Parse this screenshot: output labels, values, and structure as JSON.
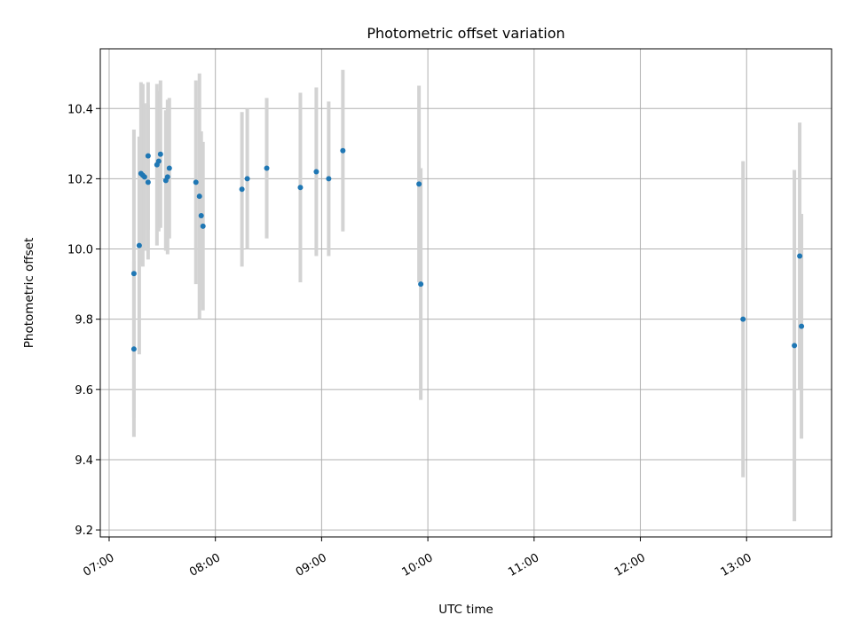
{
  "chart_data": {
    "type": "scatter",
    "title": "Photometric offset variation",
    "xlabel": "UTC time",
    "ylabel": "Photometric offset",
    "xlim": [
      "06:55",
      "13:48"
    ],
    "ylim": [
      9.18,
      10.57
    ],
    "xticks": [
      "07:00",
      "08:00",
      "09:00",
      "10:00",
      "11:00",
      "12:00",
      "13:00"
    ],
    "yticks": [
      9.2,
      9.4,
      9.6,
      9.8,
      10.0,
      10.2,
      10.4
    ],
    "grid": true,
    "colors": {
      "points": "#1f77b4",
      "error_bars": "#d3d3d3"
    },
    "points": [
      {
        "time": "07:14",
        "offset": 9.715,
        "err": 0.25
      },
      {
        "time": "07:14",
        "offset": 9.93,
        "err": 0.41
      },
      {
        "time": "07:17",
        "offset": 10.01,
        "err": 0.31
      },
      {
        "time": "07:18",
        "offset": 10.215,
        "err": 0.26
      },
      {
        "time": "07:19",
        "offset": 10.21,
        "err": 0.26
      },
      {
        "time": "07:20",
        "offset": 10.205,
        "err": 0.21
      },
      {
        "time": "07:22",
        "offset": 10.19,
        "err": 0.22
      },
      {
        "time": "07:22",
        "offset": 10.265,
        "err": 0.21
      },
      {
        "time": "07:27",
        "offset": 10.24,
        "err": 0.23
      },
      {
        "time": "07:28",
        "offset": 10.25,
        "err": 0.2
      },
      {
        "time": "07:29",
        "offset": 10.27,
        "err": 0.21
      },
      {
        "time": "07:32",
        "offset": 10.195,
        "err": 0.2
      },
      {
        "time": "07:33",
        "offset": 10.205,
        "err": 0.22
      },
      {
        "time": "07:34",
        "offset": 10.23,
        "err": 0.2
      },
      {
        "time": "07:49",
        "offset": 10.19,
        "err": 0.29
      },
      {
        "time": "07:51",
        "offset": 10.15,
        "err": 0.35
      },
      {
        "time": "07:52",
        "offset": 10.095,
        "err": 0.24
      },
      {
        "time": "07:53",
        "offset": 10.065,
        "err": 0.24
      },
      {
        "time": "08:15",
        "offset": 10.17,
        "err": 0.22
      },
      {
        "time": "08:18",
        "offset": 10.2,
        "err": 0.2
      },
      {
        "time": "08:29",
        "offset": 10.23,
        "err": 0.2
      },
      {
        "time": "08:48",
        "offset": 10.175,
        "err": 0.27
      },
      {
        "time": "08:57",
        "offset": 10.22,
        "err": 0.24
      },
      {
        "time": "09:04",
        "offset": 10.2,
        "err": 0.22
      },
      {
        "time": "09:12",
        "offset": 10.28,
        "err": 0.23
      },
      {
        "time": "09:55",
        "offset": 10.185,
        "err": 0.28
      },
      {
        "time": "09:56",
        "offset": 9.9,
        "err": 0.33
      },
      {
        "time": "12:58",
        "offset": 9.8,
        "err": 0.45
      },
      {
        "time": "13:27",
        "offset": 9.725,
        "err": 0.5
      },
      {
        "time": "13:30",
        "offset": 9.98,
        "err": 0.38
      },
      {
        "time": "13:31",
        "offset": 9.78,
        "err": 0.32
      }
    ]
  }
}
